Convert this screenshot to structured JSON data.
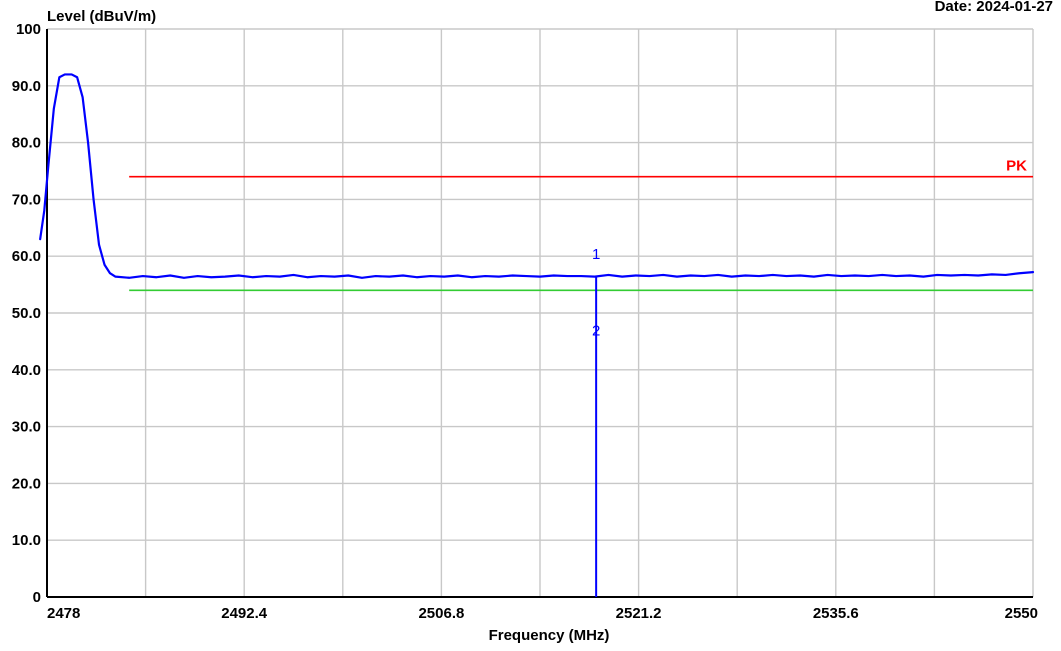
{
  "chart_data": {
    "type": "line",
    "title": "",
    "ylabel": "Level (dBuV/m)",
    "xlabel": "Frequency (MHz)",
    "date_label": "Date: 2024-01-27",
    "xlim": [
      2478,
      2550
    ],
    "ylim": [
      0,
      100
    ],
    "x_ticks": [
      2478,
      2485.2,
      2492.4,
      2499.6,
      2506.8,
      2514,
      2521.2,
      2528.4,
      2535.6,
      2542.8,
      2550
    ],
    "x_tick_labels": [
      {
        "value": 2478,
        "label": "2478"
      },
      {
        "value": 2492.4,
        "label": "2492.4"
      },
      {
        "value": 2506.8,
        "label": "2506.8"
      },
      {
        "value": 2521.2,
        "label": "2521.2"
      },
      {
        "value": 2535.6,
        "label": "2535.6"
      },
      {
        "value": 2550,
        "label": "2550"
      }
    ],
    "y_ticks": [
      0,
      10,
      20,
      30,
      40,
      50,
      60,
      70,
      80,
      90,
      100
    ],
    "y_tick_labels": [
      "0",
      "10.0",
      "20.0",
      "30.0",
      "40.0",
      "50.0",
      "60.0",
      "70.0",
      "80.0",
      "90.0",
      "100"
    ],
    "grid": true,
    "series": [
      {
        "color": "#0000ff",
        "points": [
          [
            2477.5,
            63
          ],
          [
            2477.8,
            68
          ],
          [
            2478.1,
            76
          ],
          [
            2478.5,
            86
          ],
          [
            2478.9,
            91.5
          ],
          [
            2479.3,
            92
          ],
          [
            2479.8,
            92
          ],
          [
            2480.2,
            91.5
          ],
          [
            2480.6,
            88
          ],
          [
            2481.0,
            80
          ],
          [
            2481.4,
            70
          ],
          [
            2481.8,
            62
          ],
          [
            2482.2,
            58.5
          ],
          [
            2482.6,
            57
          ],
          [
            2483,
            56.4
          ],
          [
            2484,
            56.2
          ],
          [
            2485,
            56.5
          ],
          [
            2486,
            56.3
          ],
          [
            2487,
            56.6
          ],
          [
            2488,
            56.2
          ],
          [
            2489,
            56.5
          ],
          [
            2490,
            56.3
          ],
          [
            2491,
            56.4
          ],
          [
            2492,
            56.6
          ],
          [
            2493,
            56.3
          ],
          [
            2494,
            56.5
          ],
          [
            2495,
            56.4
          ],
          [
            2496,
            56.7
          ],
          [
            2497,
            56.3
          ],
          [
            2498,
            56.5
          ],
          [
            2499,
            56.4
          ],
          [
            2500,
            56.6
          ],
          [
            2501,
            56.2
          ],
          [
            2502,
            56.5
          ],
          [
            2503,
            56.4
          ],
          [
            2504,
            56.6
          ],
          [
            2505,
            56.3
          ],
          [
            2506,
            56.5
          ],
          [
            2507,
            56.4
          ],
          [
            2508,
            56.6
          ],
          [
            2509,
            56.3
          ],
          [
            2510,
            56.5
          ],
          [
            2511,
            56.4
          ],
          [
            2512,
            56.6
          ],
          [
            2513,
            56.5
          ],
          [
            2514,
            56.4
          ],
          [
            2515,
            56.6
          ],
          [
            2516,
            56.5
          ],
          [
            2517,
            56.5
          ],
          [
            2518,
            56.4
          ],
          [
            2519,
            56.7
          ],
          [
            2520,
            56.4
          ],
          [
            2521,
            56.6
          ],
          [
            2522,
            56.5
          ],
          [
            2523,
            56.7
          ],
          [
            2524,
            56.4
          ],
          [
            2525,
            56.6
          ],
          [
            2526,
            56.5
          ],
          [
            2527,
            56.7
          ],
          [
            2528,
            56.4
          ],
          [
            2529,
            56.6
          ],
          [
            2530,
            56.5
          ],
          [
            2531,
            56.7
          ],
          [
            2532,
            56.5
          ],
          [
            2533,
            56.6
          ],
          [
            2534,
            56.4
          ],
          [
            2535,
            56.7
          ],
          [
            2536,
            56.5
          ],
          [
            2537,
            56.6
          ],
          [
            2538,
            56.5
          ],
          [
            2539,
            56.7
          ],
          [
            2540,
            56.5
          ],
          [
            2541,
            56.6
          ],
          [
            2542,
            56.4
          ],
          [
            2543,
            56.7
          ],
          [
            2544,
            56.6
          ],
          [
            2545,
            56.7
          ],
          [
            2546,
            56.6
          ],
          [
            2547,
            56.8
          ],
          [
            2548,
            56.7
          ],
          [
            2549,
            57.0
          ],
          [
            2550,
            57.2
          ]
        ]
      }
    ],
    "limit_lines": [
      {
        "label": "PK",
        "color": "#ff0000",
        "x_start": 2484.0,
        "x_end": 2550,
        "y": 74
      },
      {
        "label": "",
        "color": "#33cc33",
        "x_start": 2484.0,
        "x_end": 2550,
        "y": 54
      }
    ],
    "markers": [
      {
        "label": "1",
        "x": 2518.1,
        "y": 56.5,
        "color": "#0000ff"
      },
      {
        "label": "2",
        "x": 2518.1,
        "y": 46,
        "color": "#0000ff"
      }
    ],
    "marker_line": {
      "x": 2518.1,
      "y_from": 0,
      "y_to": 56.5,
      "color": "#0000ff"
    },
    "colors": {
      "background": "#ffffff",
      "grid": "#c8c8c8",
      "axis": "#000000",
      "text": "#000000"
    }
  }
}
